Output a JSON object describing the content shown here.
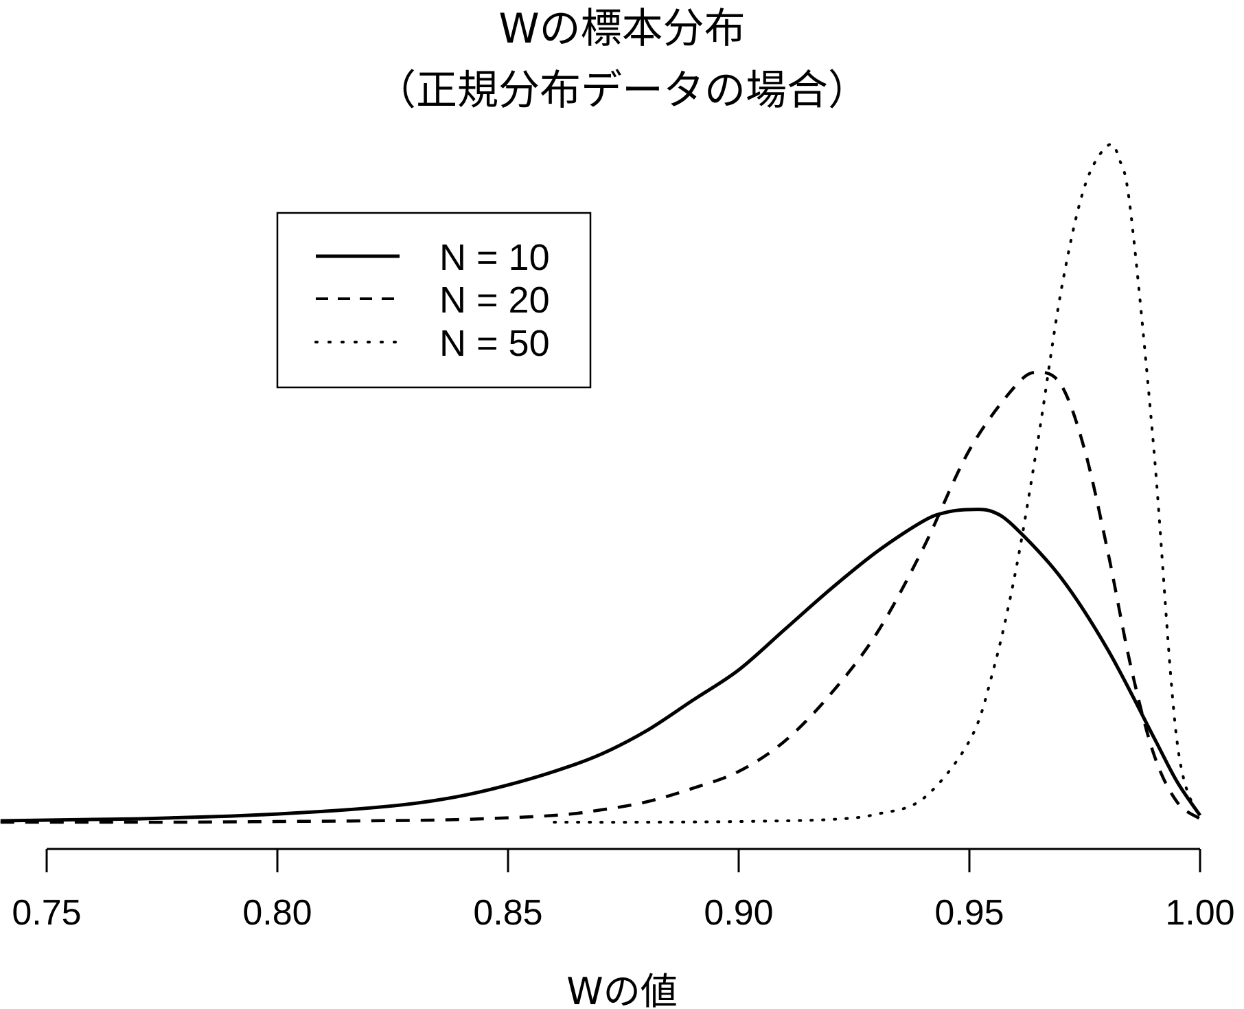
{
  "chart_data": {
    "type": "line",
    "title": "Wの標本分布",
    "subtitle": "（正規分布データの場合）",
    "xlabel": "Wの値",
    "ylabel": "",
    "xlim": [
      0.75,
      1.0
    ],
    "ylim": [
      0,
      100
    ],
    "grid": false,
    "legend_position": "top-left",
    "x_ticks": [
      0.75,
      0.8,
      0.85,
      0.9,
      0.95,
      1.0
    ],
    "x_tick_labels": [
      "0.75",
      "0.80",
      "0.85",
      "0.90",
      "0.95",
      "1.00"
    ],
    "series": [
      {
        "name": "N = 10",
        "style": "solid",
        "x": [
          0.74,
          0.75,
          0.76,
          0.77,
          0.78,
          0.79,
          0.8,
          0.81,
          0.82,
          0.83,
          0.84,
          0.85,
          0.86,
          0.87,
          0.88,
          0.89,
          0.9,
          0.91,
          0.92,
          0.93,
          0.94,
          0.945,
          0.95,
          0.955,
          0.96,
          0.97,
          0.98,
          0.99,
          0.995,
          1.0
        ],
        "values": [
          0.2,
          0.3,
          0.4,
          0.5,
          0.7,
          0.9,
          1.2,
          1.6,
          2.1,
          2.8,
          3.9,
          5.5,
          7.5,
          10.0,
          13.5,
          18.0,
          22.5,
          28.5,
          34.5,
          40.0,
          44.5,
          45.8,
          46.2,
          45.9,
          43.5,
          36.0,
          25.5,
          12.5,
          6.0,
          1.0
        ]
      },
      {
        "name": "N = 20",
        "style": "dashed",
        "x": [
          0.74,
          0.76,
          0.78,
          0.8,
          0.82,
          0.84,
          0.86,
          0.87,
          0.88,
          0.89,
          0.9,
          0.91,
          0.92,
          0.93,
          0.94,
          0.95,
          0.96,
          0.965,
          0.97,
          0.975,
          0.98,
          0.985,
          0.99,
          0.995,
          1.0
        ],
        "values": [
          0.0,
          0.0,
          0.0,
          0.1,
          0.2,
          0.4,
          1.0,
          1.8,
          3.0,
          5.0,
          7.5,
          12.0,
          19.0,
          28.0,
          40.5,
          55.0,
          64.5,
          66.5,
          64.5,
          55.0,
          40.0,
          23.0,
          10.0,
          3.0,
          0.5
        ]
      },
      {
        "name": "N = 50",
        "style": "dotted",
        "x": [
          0.86,
          0.88,
          0.9,
          0.92,
          0.93,
          0.94,
          0.95,
          0.955,
          0.96,
          0.965,
          0.97,
          0.975,
          0.98,
          0.9825,
          0.985,
          0.99,
          0.995,
          1.0
        ],
        "values": [
          0.0,
          0.0,
          0.1,
          0.4,
          1.2,
          3.5,
          12.0,
          22.0,
          37.0,
          57.0,
          79.0,
          94.0,
          100.0,
          98.0,
          90.0,
          55.0,
          12.0,
          0.5
        ]
      }
    ]
  }
}
